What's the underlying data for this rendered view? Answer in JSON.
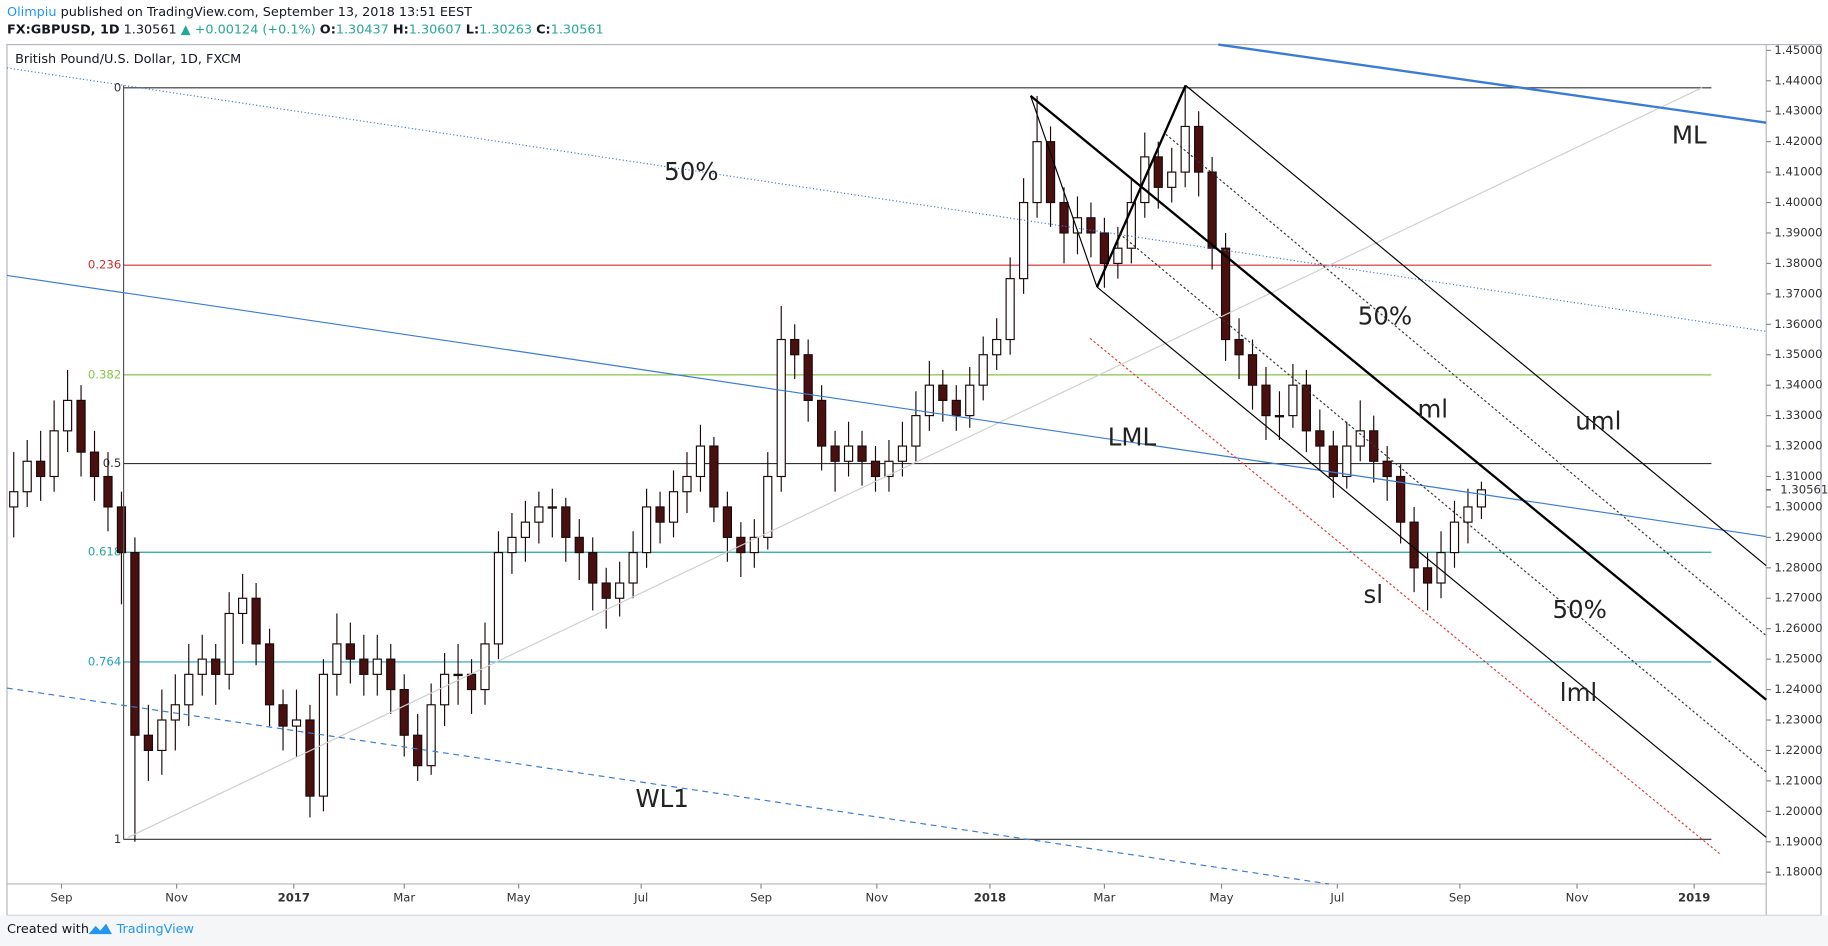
{
  "header": {
    "author": "Olimpiu",
    "published": "published on TradingView.com, September 13, 2018 13:51 EEST",
    "symbol": "FX:GBPUSD, 1D",
    "price": "1.30561",
    "arrow": "▲",
    "change": "+0.00124 (+0.1%)",
    "o_label": "O:",
    "o": "1.30437",
    "h_label": "H:",
    "h": "1.30607",
    "l_label": "L:",
    "l": "1.30263",
    "c_label": "C:",
    "c": "1.30561"
  },
  "footer": {
    "created": "Created with",
    "brand": "TradingView"
  },
  "chart_data": {
    "type": "candlestick",
    "title": "British Pound/U.S. Dollar, 1D, FXCM",
    "up_color": "#ffffff",
    "down_color": "#4a1010",
    "candles": [
      [
        1.3,
        1.318,
        1.29,
        1.305
      ],
      [
        1.305,
        1.322,
        1.3,
        1.315
      ],
      [
        1.315,
        1.325,
        1.302,
        1.31
      ],
      [
        1.31,
        1.335,
        1.305,
        1.325
      ],
      [
        1.325,
        1.345,
        1.318,
        1.335
      ],
      [
        1.335,
        1.34,
        1.31,
        1.318
      ],
      [
        1.318,
        1.325,
        1.302,
        1.31
      ],
      [
        1.31,
        1.318,
        1.292,
        1.3
      ],
      [
        1.3,
        1.305,
        1.268,
        1.285
      ],
      [
        1.285,
        1.29,
        1.19,
        1.225
      ],
      [
        1.225,
        1.235,
        1.21,
        1.22
      ],
      [
        1.22,
        1.24,
        1.212,
        1.23
      ],
      [
        1.23,
        1.245,
        1.22,
        1.235
      ],
      [
        1.235,
        1.255,
        1.228,
        1.245
      ],
      [
        1.245,
        1.258,
        1.238,
        1.25
      ],
      [
        1.25,
        1.255,
        1.235,
        1.245
      ],
      [
        1.245,
        1.272,
        1.24,
        1.265
      ],
      [
        1.265,
        1.278,
        1.255,
        1.27
      ],
      [
        1.27,
        1.275,
        1.248,
        1.255
      ],
      [
        1.255,
        1.26,
        1.228,
        1.235
      ],
      [
        1.235,
        1.24,
        1.22,
        1.228
      ],
      [
        1.228,
        1.24,
        1.218,
        1.23
      ],
      [
        1.23,
        1.235,
        1.198,
        1.205
      ],
      [
        1.205,
        1.25,
        1.2,
        1.245
      ],
      [
        1.245,
        1.265,
        1.238,
        1.255
      ],
      [
        1.255,
        1.262,
        1.242,
        1.25
      ],
      [
        1.25,
        1.258,
        1.238,
        1.245
      ],
      [
        1.245,
        1.258,
        1.238,
        1.25
      ],
      [
        1.25,
        1.255,
        1.232,
        1.24
      ],
      [
        1.24,
        1.245,
        1.218,
        1.225
      ],
      [
        1.225,
        1.232,
        1.21,
        1.215
      ],
      [
        1.215,
        1.242,
        1.212,
        1.235
      ],
      [
        1.235,
        1.252,
        1.228,
        1.245
      ],
      [
        1.245,
        1.255,
        1.235,
        1.245
      ],
      [
        1.245,
        1.25,
        1.232,
        1.24
      ],
      [
        1.24,
        1.262,
        1.235,
        1.255
      ],
      [
        1.255,
        1.292,
        1.25,
        1.285
      ],
      [
        1.285,
        1.298,
        1.278,
        1.29
      ],
      [
        1.29,
        1.302,
        1.282,
        1.295
      ],
      [
        1.295,
        1.305,
        1.288,
        1.3
      ],
      [
        1.3,
        1.306,
        1.29,
        1.3
      ],
      [
        1.3,
        1.303,
        1.282,
        1.29
      ],
      [
        1.29,
        1.296,
        1.276,
        1.285
      ],
      [
        1.285,
        1.29,
        1.266,
        1.275
      ],
      [
        1.275,
        1.28,
        1.26,
        1.27
      ],
      [
        1.27,
        1.282,
        1.264,
        1.275
      ],
      [
        1.275,
        1.292,
        1.27,
        1.285
      ],
      [
        1.285,
        1.306,
        1.28,
        1.3
      ],
      [
        1.3,
        1.305,
        1.288,
        1.295
      ],
      [
        1.295,
        1.312,
        1.29,
        1.305
      ],
      [
        1.305,
        1.318,
        1.298,
        1.31
      ],
      [
        1.31,
        1.327,
        1.305,
        1.32
      ],
      [
        1.32,
        1.323,
        1.295,
        1.3
      ],
      [
        1.3,
        1.305,
        1.282,
        1.29
      ],
      [
        1.29,
        1.295,
        1.277,
        1.285
      ],
      [
        1.285,
        1.296,
        1.28,
        1.29
      ],
      [
        1.29,
        1.318,
        1.286,
        1.31
      ],
      [
        1.31,
        1.366,
        1.305,
        1.355
      ],
      [
        1.355,
        1.36,
        1.342,
        1.35
      ],
      [
        1.35,
        1.355,
        1.328,
        1.335
      ],
      [
        1.335,
        1.34,
        1.312,
        1.32
      ],
      [
        1.32,
        1.325,
        1.305,
        1.315
      ],
      [
        1.315,
        1.328,
        1.31,
        1.32
      ],
      [
        1.32,
        1.325,
        1.307,
        1.315
      ],
      [
        1.315,
        1.32,
        1.305,
        1.31
      ],
      [
        1.31,
        1.322,
        1.305,
        1.315
      ],
      [
        1.315,
        1.328,
        1.31,
        1.32
      ],
      [
        1.32,
        1.338,
        1.315,
        1.33
      ],
      [
        1.33,
        1.348,
        1.325,
        1.34
      ],
      [
        1.34,
        1.345,
        1.328,
        1.335
      ],
      [
        1.335,
        1.34,
        1.325,
        1.33
      ],
      [
        1.33,
        1.346,
        1.326,
        1.34
      ],
      [
        1.34,
        1.356,
        1.335,
        1.35
      ],
      [
        1.35,
        1.362,
        1.345,
        1.355
      ],
      [
        1.355,
        1.382,
        1.35,
        1.375
      ],
      [
        1.375,
        1.408,
        1.37,
        1.4
      ],
      [
        1.4,
        1.435,
        1.395,
        1.42
      ],
      [
        1.42,
        1.425,
        1.392,
        1.4
      ],
      [
        1.4,
        1.405,
        1.38,
        1.39
      ],
      [
        1.39,
        1.402,
        1.383,
        1.395
      ],
      [
        1.395,
        1.4,
        1.382,
        1.39
      ],
      [
        1.39,
        1.395,
        1.372,
        1.38
      ],
      [
        1.38,
        1.392,
        1.375,
        1.385
      ],
      [
        1.385,
        1.408,
        1.38,
        1.4
      ],
      [
        1.4,
        1.423,
        1.395,
        1.415
      ],
      [
        1.415,
        1.42,
        1.398,
        1.405
      ],
      [
        1.405,
        1.418,
        1.4,
        1.41
      ],
      [
        1.41,
        1.4377,
        1.405,
        1.425
      ],
      [
        1.425,
        1.43,
        1.402,
        1.41
      ],
      [
        1.41,
        1.415,
        1.378,
        1.385
      ],
      [
        1.385,
        1.39,
        1.348,
        1.355
      ],
      [
        1.355,
        1.362,
        1.342,
        1.35
      ],
      [
        1.35,
        1.355,
        1.332,
        1.34
      ],
      [
        1.34,
        1.346,
        1.322,
        1.33
      ],
      [
        1.33,
        1.338,
        1.322,
        1.33
      ],
      [
        1.33,
        1.347,
        1.326,
        1.34
      ],
      [
        1.34,
        1.345,
        1.318,
        1.325
      ],
      [
        1.325,
        1.332,
        1.312,
        1.32
      ],
      [
        1.32,
        1.325,
        1.303,
        1.31
      ],
      [
        1.31,
        1.328,
        1.306,
        1.32
      ],
      [
        1.32,
        1.335,
        1.315,
        1.325
      ],
      [
        1.325,
        1.33,
        1.308,
        1.315
      ],
      [
        1.315,
        1.32,
        1.302,
        1.31
      ],
      [
        1.31,
        1.314,
        1.288,
        1.295
      ],
      [
        1.295,
        1.3,
        1.272,
        1.28
      ],
      [
        1.28,
        1.285,
        1.266,
        1.275
      ],
      [
        1.275,
        1.292,
        1.27,
        1.285
      ],
      [
        1.285,
        1.302,
        1.28,
        1.295
      ],
      [
        1.295,
        1.306,
        1.288,
        1.3
      ],
      [
        1.3,
        1.3083,
        1.296,
        1.30561
      ]
    ],
    "xlim": [
      -0.5,
      130.15
    ],
    "xticks": [
      {
        "value": 3.55,
        "label": "Sep"
      },
      {
        "value": 12.1,
        "label": "Nov"
      },
      {
        "value": 20.8,
        "label": "2017"
      },
      {
        "value": 29.0,
        "label": "Mar"
      },
      {
        "value": 37.5,
        "label": "May"
      },
      {
        "value": 46.6,
        "label": "Jul"
      },
      {
        "value": 55.5,
        "label": "Sep"
      },
      {
        "value": 64.1,
        "label": "Nov"
      },
      {
        "value": 72.5,
        "label": "2018"
      },
      {
        "value": 81.0,
        "label": "Mar"
      },
      {
        "value": 89.7,
        "label": "May"
      },
      {
        "value": 98.3,
        "label": "Jul"
      },
      {
        "value": 107.4,
        "label": "Sep"
      },
      {
        "value": 116.1,
        "label": "Nov"
      },
      {
        "value": 124.8,
        "label": "2019"
      }
    ],
    "ylim": [
      1.1658,
      1.4519
    ],
    "yticks": [
      {
        "value": 1.45,
        "label": "1.45000"
      },
      {
        "value": 1.44,
        "label": "1.44000"
      },
      {
        "value": 1.43,
        "label": "1.43000"
      },
      {
        "value": 1.42,
        "label": "1.42000"
      },
      {
        "value": 1.41,
        "label": "1.41000"
      },
      {
        "value": 1.4,
        "label": "1.40000"
      },
      {
        "value": 1.39,
        "label": "1.39000"
      },
      {
        "value": 1.38,
        "label": "1.38000"
      },
      {
        "value": 1.37,
        "label": "1.37000"
      },
      {
        "value": 1.36,
        "label": "1.36000"
      },
      {
        "value": 1.35,
        "label": "1.35000"
      },
      {
        "value": 1.34,
        "label": "1.34000"
      },
      {
        "value": 1.33,
        "label": "1.33000"
      },
      {
        "value": 1.32,
        "label": "1.32000"
      },
      {
        "value": 1.31,
        "label": "1.31000"
      },
      {
        "value": 1.3,
        "label": "1.30000"
      },
      {
        "value": 1.29,
        "label": "1.29000"
      },
      {
        "value": 1.28,
        "label": "1.28000"
      },
      {
        "value": 1.27,
        "label": "1.27000"
      },
      {
        "value": 1.26,
        "label": "1.26000"
      },
      {
        "value": 1.25,
        "label": "1.25000"
      },
      {
        "value": 1.24,
        "label": "1.24000"
      },
      {
        "value": 1.23,
        "label": "1.23000"
      },
      {
        "value": 1.22,
        "label": "1.22000"
      },
      {
        "value": 1.21,
        "label": "1.21000"
      },
      {
        "value": 1.2,
        "label": "1.20000"
      },
      {
        "value": 1.19,
        "label": "1.19000"
      },
      {
        "value": 1.18,
        "label": "1.18000"
      }
    ],
    "fib_range": [
      1.4377,
      1.1908
    ],
    "fib_levels": [
      {
        "ratio": 0,
        "color": "#333333"
      },
      {
        "ratio": 0.236,
        "color": "#d32f2f"
      },
      {
        "ratio": 0.382,
        "color": "#8bc34a"
      },
      {
        "ratio": 0.5,
        "color": "#333333"
      },
      {
        "ratio": 0.618,
        "color": "#26a69a"
      },
      {
        "ratio": 0.764,
        "color": "#1fa2c2"
      },
      {
        "ratio": 1,
        "color": "#333333"
      }
    ],
    "annotations": [
      "50%",
      "50%",
      "50%",
      "ML",
      "LML",
      "ml",
      "uml",
      "lml",
      "sl",
      "WL1"
    ]
  }
}
